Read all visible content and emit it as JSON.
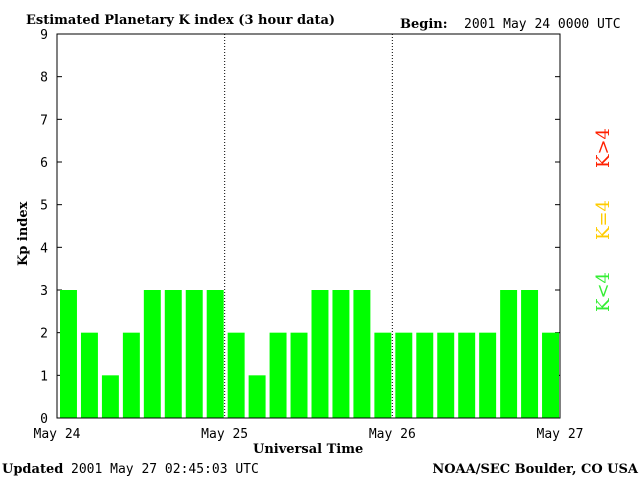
{
  "header": {
    "title": "Estimated Planetary K index (3 hour data)",
    "begin_label": "Begin:",
    "begin_value": "2001 May 24 0000 UTC"
  },
  "footer": {
    "updated_label": "Updated",
    "updated_value": "2001 May 27 02:45:03 UTC",
    "source": "NOAA/SEC Boulder, CO USA"
  },
  "legend": {
    "high": {
      "text": "K>4",
      "color": "#ff2000"
    },
    "equal": {
      "text": "K=4",
      "color": "#ffcc00"
    },
    "low": {
      "text": "K<4",
      "color": "#33ee33"
    }
  },
  "colors": {
    "bar": "#00ff00",
    "axis": "#000000",
    "background": "#ffffff"
  },
  "chart_data": {
    "type": "bar",
    "title": "Estimated Planetary K index (3 hour data)",
    "xlabel": "Universal Time",
    "ylabel": "Kp index",
    "ylim": [
      0,
      9
    ],
    "y_ticks": [
      "0",
      "1",
      "2",
      "3",
      "4",
      "5",
      "6",
      "7",
      "8",
      "9"
    ],
    "x_ticks": [
      "May 24",
      "May 25",
      "May 26",
      "May 27"
    ],
    "day_separators": [
      "May 25",
      "May 26"
    ],
    "grid": false,
    "values": [
      3,
      2,
      1,
      2,
      3,
      3,
      3,
      3,
      2,
      1,
      2,
      2,
      3,
      3,
      3,
      2,
      2,
      2,
      2,
      2,
      2,
      3,
      3,
      2
    ]
  }
}
